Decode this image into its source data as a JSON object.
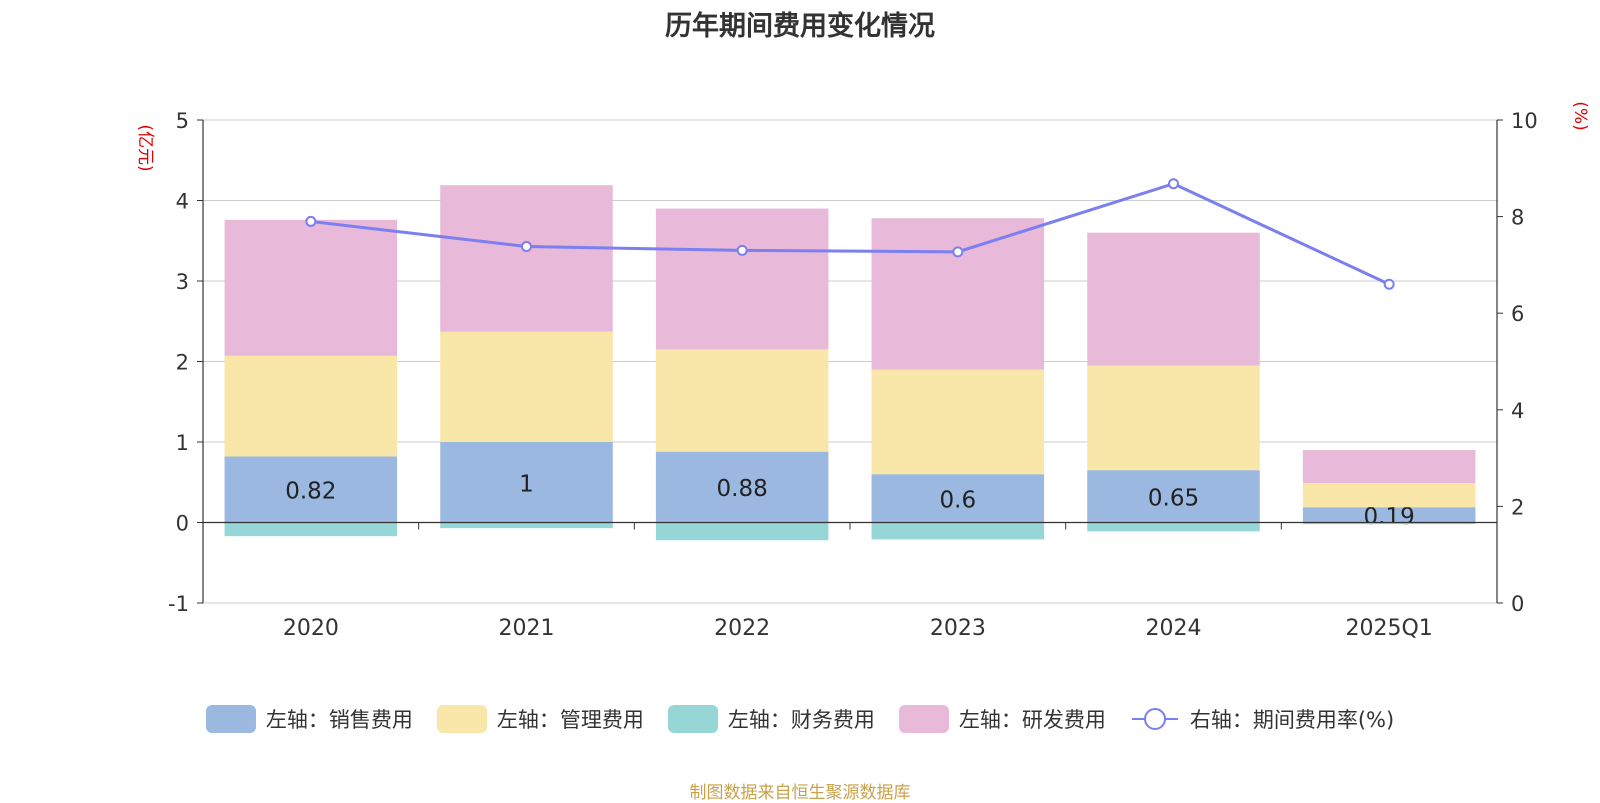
{
  "chart_data": {
    "type": "bar",
    "title": "历年期间费用变化情况",
    "categories": [
      "2020",
      "2021",
      "2022",
      "2023",
      "2024",
      "2025Q1"
    ],
    "y_left": {
      "unit_label": "(亿元)",
      "min": -1,
      "max": 5,
      "ticks": [
        5,
        4,
        3,
        2,
        1,
        0,
        -1
      ]
    },
    "y_right": {
      "unit_label": "(%)",
      "min": 0,
      "max": 10,
      "ticks": [
        10,
        8,
        6,
        4,
        2,
        0
      ]
    },
    "series": [
      {
        "name": "左轴：销售费用",
        "axis": "left",
        "kind": "bar",
        "color": "#9bb8e0",
        "values": [
          0.82,
          1.0,
          0.88,
          0.6,
          0.65,
          0.19
        ],
        "labels": [
          "0.82",
          "1",
          "0.88",
          "0.6",
          "0.65",
          "0.19"
        ]
      },
      {
        "name": "左轴：管理费用",
        "axis": "left",
        "kind": "bar",
        "color": "#f8e7a8",
        "values": [
          1.25,
          1.37,
          1.27,
          1.3,
          1.3,
          0.3
        ]
      },
      {
        "name": "左轴：财务费用",
        "axis": "left",
        "kind": "bar",
        "color": "#96d6d6",
        "values": [
          -0.17,
          -0.07,
          -0.22,
          -0.21,
          -0.11,
          -0.02
        ]
      },
      {
        "name": "左轴：研发费用",
        "axis": "left",
        "kind": "bar",
        "color": "#e8b9d9",
        "values": [
          1.69,
          1.82,
          1.75,
          1.88,
          1.65,
          0.41
        ]
      },
      {
        "name": "右轴：期间费用率(%)",
        "axis": "right",
        "kind": "line",
        "color": "#7b7ff0",
        "values": [
          7.9,
          7.38,
          7.3,
          7.27,
          8.68,
          6.6
        ]
      }
    ],
    "legend": {
      "position": "bottom"
    },
    "grid": true
  },
  "source_note": "制图数据来自恒生聚源数据库"
}
